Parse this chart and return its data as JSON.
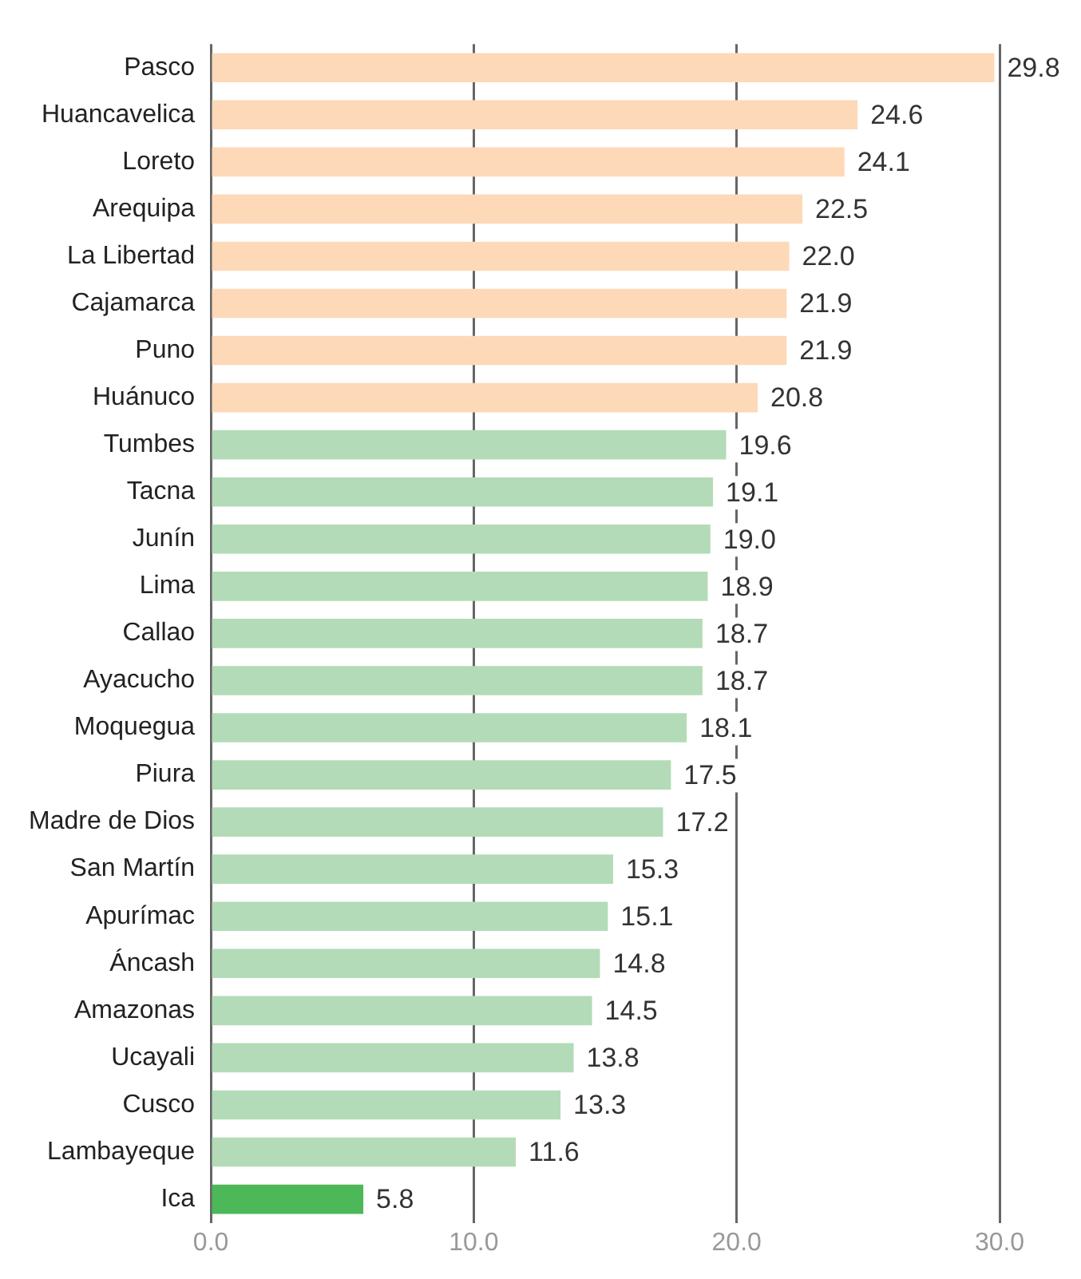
{
  "chart_data": {
    "type": "bar",
    "orientation": "horizontal",
    "categories": [
      "Pasco",
      "Huancavelica",
      "Loreto",
      "Arequipa",
      "La Libertad",
      "Cajamarca",
      "Puno",
      "Huánuco",
      "Tumbes",
      "Tacna",
      "Junín",
      "Lima",
      "Callao",
      "Ayacucho",
      "Moquegua",
      "Piura",
      "Madre de Dios",
      "San Martín",
      "Apurímac",
      "Áncash",
      "Amazonas",
      "Ucayali",
      "Cusco",
      "Lambayeque",
      "Ica"
    ],
    "values": [
      29.8,
      24.6,
      24.1,
      22.5,
      22.0,
      21.9,
      21.9,
      20.8,
      19.6,
      19.1,
      19.0,
      18.9,
      18.7,
      18.7,
      18.1,
      17.5,
      17.2,
      15.3,
      15.1,
      14.8,
      14.5,
      13.8,
      13.3,
      11.6,
      5.8
    ],
    "value_labels": [
      "29.8",
      "24.6",
      "24.1",
      "22.5",
      "22.0",
      "21.9",
      "21.9",
      "20.8",
      "19.6",
      "19.1",
      "19.0",
      "18.9",
      "18.7",
      "18.7",
      "18.1",
      "17.5",
      "17.2",
      "15.3",
      "15.1",
      "14.8",
      "14.5",
      "13.8",
      "13.3",
      "11.6",
      "5.8"
    ],
    "colors": [
      "#fdd9b8",
      "#fdd9b8",
      "#fdd9b8",
      "#fdd9b8",
      "#fdd9b8",
      "#fdd9b8",
      "#fdd9b8",
      "#fdd9b8",
      "#b3dbb7",
      "#b3dbb7",
      "#b3dbb7",
      "#b3dbb7",
      "#b3dbb7",
      "#b3dbb7",
      "#b3dbb7",
      "#b3dbb7",
      "#b3dbb7",
      "#b3dbb7",
      "#b3dbb7",
      "#b3dbb7",
      "#b3dbb7",
      "#b3dbb7",
      "#b3dbb7",
      "#b3dbb7",
      "#4cb858"
    ],
    "xlim": [
      0,
      30
    ],
    "xticks": [
      {
        "value": 0,
        "label": "0.0"
      },
      {
        "value": 10,
        "label": "10.0"
      },
      {
        "value": 20,
        "label": "20.0"
      },
      {
        "value": 30,
        "label": "30.0"
      }
    ],
    "grid": "x",
    "legend": false
  }
}
